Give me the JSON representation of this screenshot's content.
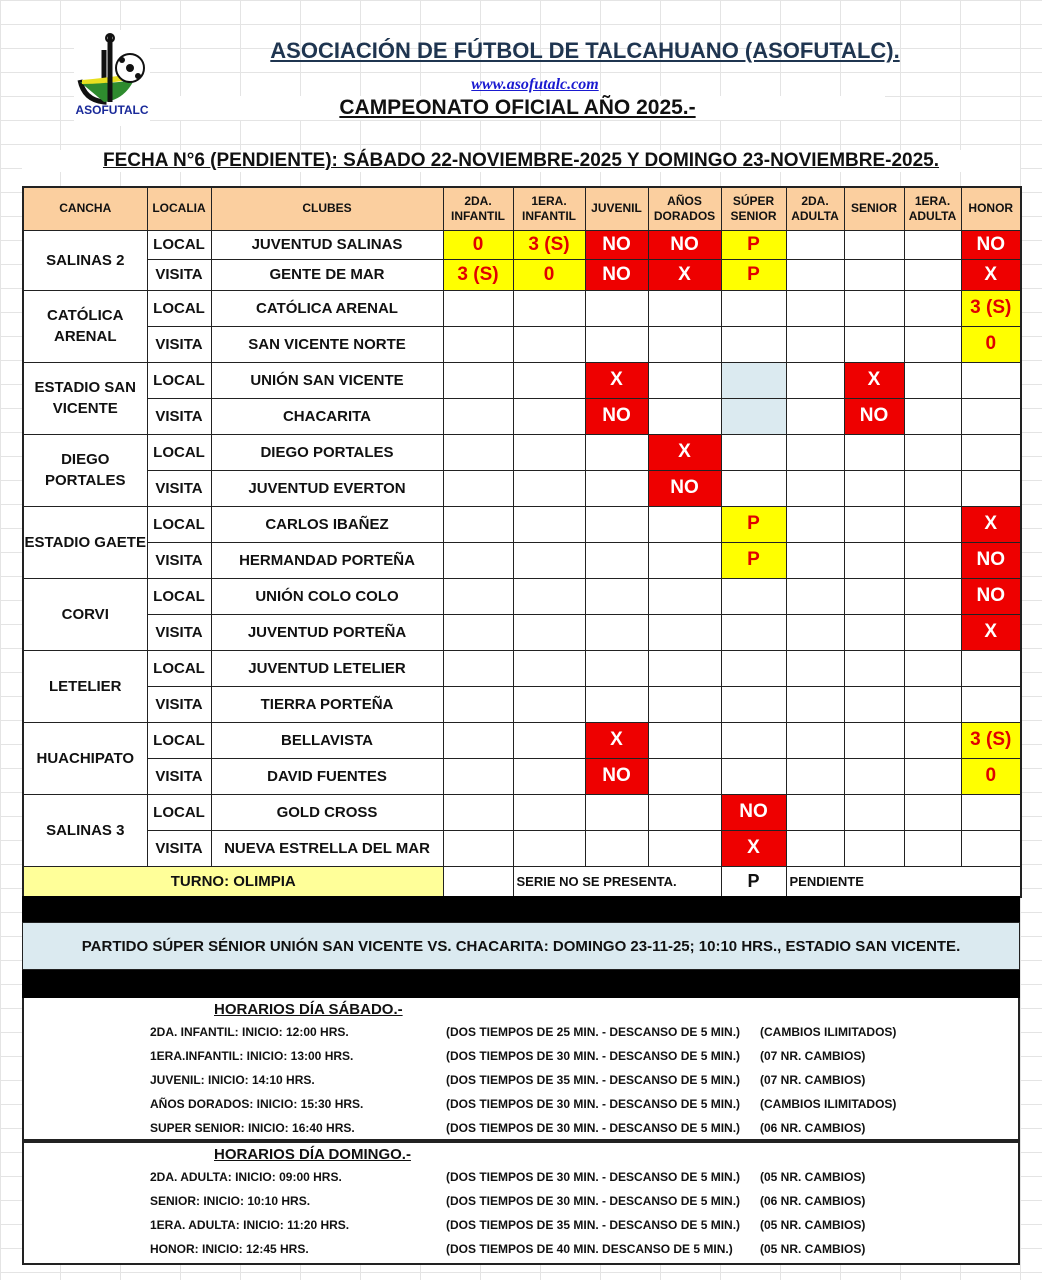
{
  "header": {
    "logo_text": "ASOFUTALC",
    "title": "ASOCIACIÓN DE FÚTBOL DE TALCAHUANO (ASOFUTALC).",
    "url": "www.asofutalc.com",
    "championship": "CAMPEONATO OFICIAL AÑO 2025.-",
    "fecha": "FECHA N°6 (PENDIENTE): SÁBADO 22-NOVIEMBRE-2025 Y DOMINGO 23-NOVIEMBRE-2025."
  },
  "colors": {
    "yellow": "#ffff00",
    "red": "#ee0000",
    "header": "#fbcf9f",
    "blue": "#dbeaf0"
  },
  "table": {
    "columns": [
      "CANCHA",
      "LOCALIA",
      "CLUBES",
      "2DA. INFANTIL",
      "1ERA. INFANTIL",
      "JUVENIL",
      "AÑOS DORADOS",
      "SÚPER SENIOR",
      "2DA. ADULTA",
      "SENIOR",
      "1ERA. ADULTA",
      "HONOR"
    ],
    "groups": [
      {
        "cancha": "SALINAS 2",
        "rows": [
          {
            "localia": "LOCAL",
            "club": "JUVENTUD SALINAS",
            "cells": [
              [
                "0",
                "y"
              ],
              [
                "3 (S)",
                "y"
              ],
              [
                "NO",
                "r"
              ],
              [
                "NO",
                "r"
              ],
              [
                "P",
                "y"
              ],
              [
                "",
                ""
              ],
              [
                "",
                ""
              ],
              [
                "",
                ""
              ],
              [
                "NO",
                "r"
              ]
            ]
          },
          {
            "localia": "VISITA",
            "club": "GENTE DE MAR",
            "cells": [
              [
                "3 (S)",
                "y"
              ],
              [
                "0",
                "y"
              ],
              [
                "NO",
                "r"
              ],
              [
                "X",
                "r"
              ],
              [
                "P",
                "y"
              ],
              [
                "",
                ""
              ],
              [
                "",
                ""
              ],
              [
                "",
                ""
              ],
              [
                "X",
                "r"
              ]
            ]
          }
        ]
      },
      {
        "cancha": "CATÓLICA ARENAL",
        "rows": [
          {
            "localia": "LOCAL",
            "club": "CATÓLICA ARENAL",
            "cells": [
              [
                "",
                ""
              ],
              [
                "",
                ""
              ],
              [
                "",
                ""
              ],
              [
                "",
                ""
              ],
              [
                "",
                ""
              ],
              [
                "",
                ""
              ],
              [
                "",
                ""
              ],
              [
                "",
                ""
              ],
              [
                "3 (S)",
                "y"
              ]
            ]
          },
          {
            "localia": "VISITA",
            "club": "SAN VICENTE NORTE",
            "cells": [
              [
                "",
                ""
              ],
              [
                "",
                ""
              ],
              [
                "",
                ""
              ],
              [
                "",
                ""
              ],
              [
                "",
                ""
              ],
              [
                "",
                ""
              ],
              [
                "",
                ""
              ],
              [
                "",
                ""
              ],
              [
                "0",
                "y"
              ]
            ]
          }
        ]
      },
      {
        "cancha": "ESTADIO SAN VICENTE",
        "rows": [
          {
            "localia": "LOCAL",
            "club": "UNIÓN SAN VICENTE",
            "cells": [
              [
                "",
                ""
              ],
              [
                "",
                ""
              ],
              [
                "X",
                "r"
              ],
              [
                "",
                ""
              ],
              [
                "",
                "b"
              ],
              [
                "",
                ""
              ],
              [
                "X",
                "r"
              ],
              [
                "",
                ""
              ],
              [
                "",
                ""
              ]
            ]
          },
          {
            "localia": "VISITA",
            "club": "CHACARITA",
            "cells": [
              [
                "",
                ""
              ],
              [
                "",
                ""
              ],
              [
                "NO",
                "r"
              ],
              [
                "",
                ""
              ],
              [
                "",
                "b"
              ],
              [
                "",
                ""
              ],
              [
                "NO",
                "r"
              ],
              [
                "",
                ""
              ],
              [
                "",
                ""
              ]
            ]
          }
        ]
      },
      {
        "cancha": "DIEGO PORTALES",
        "rows": [
          {
            "localia": "LOCAL",
            "club": "DIEGO PORTALES",
            "cells": [
              [
                "",
                ""
              ],
              [
                "",
                ""
              ],
              [
                "",
                ""
              ],
              [
                "X",
                "r"
              ],
              [
                "",
                ""
              ],
              [
                "",
                ""
              ],
              [
                "",
                ""
              ],
              [
                "",
                ""
              ],
              [
                "",
                ""
              ]
            ]
          },
          {
            "localia": "VISITA",
            "club": "JUVENTUD EVERTON",
            "cells": [
              [
                "",
                ""
              ],
              [
                "",
                ""
              ],
              [
                "",
                ""
              ],
              [
                "NO",
                "r"
              ],
              [
                "",
                ""
              ],
              [
                "",
                ""
              ],
              [
                "",
                ""
              ],
              [
                "",
                ""
              ],
              [
                "",
                ""
              ]
            ]
          }
        ]
      },
      {
        "cancha": "ESTADIO GAETE",
        "rows": [
          {
            "localia": "LOCAL",
            "club": "CARLOS IBAÑEZ",
            "cells": [
              [
                "",
                ""
              ],
              [
                "",
                ""
              ],
              [
                "",
                ""
              ],
              [
                "",
                ""
              ],
              [
                "P",
                "y"
              ],
              [
                "",
                ""
              ],
              [
                "",
                ""
              ],
              [
                "",
                ""
              ],
              [
                "X",
                "r"
              ]
            ]
          },
          {
            "localia": "VISITA",
            "club": "HERMANDAD PORTEÑA",
            "cells": [
              [
                "",
                ""
              ],
              [
                "",
                ""
              ],
              [
                "",
                ""
              ],
              [
                "",
                ""
              ],
              [
                "P",
                "y"
              ],
              [
                "",
                ""
              ],
              [
                "",
                ""
              ],
              [
                "",
                ""
              ],
              [
                "NO",
                "r"
              ]
            ]
          }
        ]
      },
      {
        "cancha": "CORVI",
        "rows": [
          {
            "localia": "LOCAL",
            "club": "UNIÓN COLO COLO",
            "cells": [
              [
                "",
                ""
              ],
              [
                "",
                ""
              ],
              [
                "",
                ""
              ],
              [
                "",
                ""
              ],
              [
                "",
                ""
              ],
              [
                "",
                ""
              ],
              [
                "",
                ""
              ],
              [
                "",
                ""
              ],
              [
                "NO",
                "r"
              ]
            ]
          },
          {
            "localia": "VISITA",
            "club": "JUVENTUD PORTEÑA",
            "cells": [
              [
                "",
                ""
              ],
              [
                "",
                ""
              ],
              [
                "",
                ""
              ],
              [
                "",
                ""
              ],
              [
                "",
                ""
              ],
              [
                "",
                ""
              ],
              [
                "",
                ""
              ],
              [
                "",
                ""
              ],
              [
                "X",
                "r"
              ]
            ]
          }
        ]
      },
      {
        "cancha": "LETELIER",
        "rows": [
          {
            "localia": "LOCAL",
            "club": "JUVENTUD LETELIER",
            "cells": [
              [
                "",
                ""
              ],
              [
                "",
                ""
              ],
              [
                "",
                ""
              ],
              [
                "",
                ""
              ],
              [
                "",
                ""
              ],
              [
                "",
                ""
              ],
              [
                "",
                ""
              ],
              [
                "",
                ""
              ],
              [
                "",
                ""
              ]
            ]
          },
          {
            "localia": "VISITA",
            "club": "TIERRA PORTEÑA",
            "cells": [
              [
                "",
                ""
              ],
              [
                "",
                ""
              ],
              [
                "",
                ""
              ],
              [
                "",
                ""
              ],
              [
                "",
                ""
              ],
              [
                "",
                ""
              ],
              [
                "",
                ""
              ],
              [
                "",
                ""
              ],
              [
                "",
                ""
              ]
            ]
          }
        ]
      },
      {
        "cancha": "HUACHIPATO",
        "rows": [
          {
            "localia": "LOCAL",
            "club": "BELLAVISTA",
            "cells": [
              [
                "",
                ""
              ],
              [
                "",
                ""
              ],
              [
                "X",
                "r"
              ],
              [
                "",
                ""
              ],
              [
                "",
                ""
              ],
              [
                "",
                ""
              ],
              [
                "",
                ""
              ],
              [
                "",
                ""
              ],
              [
                "3 (S)",
                "y"
              ]
            ]
          },
          {
            "localia": "VISITA",
            "club": "DAVID FUENTES",
            "cells": [
              [
                "",
                ""
              ],
              [
                "",
                ""
              ],
              [
                "NO",
                "r"
              ],
              [
                "",
                ""
              ],
              [
                "",
                ""
              ],
              [
                "",
                ""
              ],
              [
                "",
                ""
              ],
              [
                "",
                ""
              ],
              [
                "0",
                "y"
              ]
            ]
          }
        ]
      },
      {
        "cancha": "SALINAS 3",
        "rows": [
          {
            "localia": "LOCAL",
            "club": "GOLD CROSS",
            "cells": [
              [
                "",
                ""
              ],
              [
                "",
                ""
              ],
              [
                "",
                ""
              ],
              [
                "",
                ""
              ],
              [
                "NO",
                "r"
              ],
              [
                "",
                ""
              ],
              [
                "",
                ""
              ],
              [
                "",
                ""
              ],
              [
                "",
                ""
              ]
            ]
          },
          {
            "localia": "VISITA",
            "club": "NUEVA ESTRELLA DEL MAR",
            "cells": [
              [
                "",
                ""
              ],
              [
                "",
                ""
              ],
              [
                "",
                ""
              ],
              [
                "",
                ""
              ],
              [
                "X",
                "r"
              ],
              [
                "",
                ""
              ],
              [
                "",
                ""
              ],
              [
                "",
                ""
              ],
              [
                "",
                ""
              ]
            ]
          }
        ]
      }
    ],
    "turno": "TURNO: OLIMPIA",
    "legend": [
      {
        "code": "NO",
        "text": "SERIE NO SE PRESENTA."
      },
      {
        "code": "P",
        "text": "PENDIENTE"
      }
    ]
  },
  "note": "PARTIDO SÚPER SÉNIOR UNIÓN SAN VICENTE VS. CHACARITA: DOMINGO 23-11-25; 10:10 HRS., ESTADIO SAN VICENTE.",
  "schedule": [
    {
      "title": "HORARIOS DÍA SÁBADO.-",
      "rows": [
        [
          "2DA. INFANTIL: INICIO: 12:00 HRS.",
          "(DOS TIEMPOS DE 25 MIN. - DESCANSO DE 5 MIN.)",
          "(CAMBIOS ILIMITADOS)"
        ],
        [
          "1ERA.INFANTIL: INICIO: 13:00 HRS.",
          "(DOS TIEMPOS DE 30 MIN. - DESCANSO DE 5 MIN.)",
          "(07 NR. CAMBIOS)"
        ],
        [
          "JUVENIL: INICIO: 14:10 HRS.",
          "(DOS TIEMPOS DE 35 MIN. - DESCANSO DE 5 MIN.)",
          "(07 NR. CAMBIOS)"
        ],
        [
          "AÑOS DORADOS: INICIO: 15:30 HRS.",
          "(DOS TIEMPOS DE 30 MIN. - DESCANSO DE 5 MIN.)",
          "(CAMBIOS ILIMITADOS)"
        ],
        [
          "SUPER SENIOR: INICIO: 16:40 HRS.",
          "(DOS TIEMPOS DE 30 MIN. - DESCANSO DE 5 MIN.)",
          "(06 NR. CAMBIOS)"
        ]
      ]
    },
    {
      "title": "HORARIOS DÍA DOMINGO.-",
      "rows": [
        [
          "2DA. ADULTA: INICIO: 09:00 HRS.",
          "(DOS TIEMPOS DE 30 MIN. - DESCANSO DE 5 MIN.)",
          "(05 NR. CAMBIOS)"
        ],
        [
          "SENIOR: INICIO: 10:10 HRS.",
          "(DOS TIEMPOS DE 30 MIN. - DESCANSO DE 5 MIN.)",
          "(06 NR. CAMBIOS)"
        ],
        [
          "1ERA. ADULTA: INICIO: 11:20 HRS.",
          "(DOS TIEMPOS DE 35 MIN. - DESCANSO DE 5 MIN.)",
          "(05 NR. CAMBIOS)"
        ],
        [
          "HONOR: INICIO: 12:45 HRS.",
          "(DOS TIEMPOS DE 40 MIN. DESCANSO DE 5 MIN.)",
          "(05 NR. CAMBIOS)"
        ]
      ]
    }
  ]
}
